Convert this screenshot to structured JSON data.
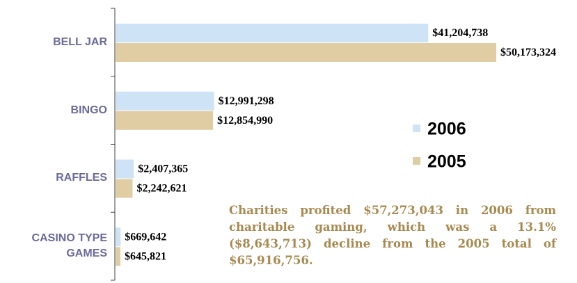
{
  "chart_data": {
    "type": "bar",
    "orientation": "horizontal",
    "categories": [
      "BELL JAR",
      "BINGO",
      "RAFFLES",
      "CASINO TYPE GAMES"
    ],
    "series": [
      {
        "name": "2006",
        "color": "#cfe3f7",
        "values": [
          41204738,
          12991298,
          2407365,
          669642
        ],
        "value_labels": [
          "$41,204,738",
          "$12,991,298",
          "$2,407,365",
          "$669,642"
        ]
      },
      {
        "name": "2005",
        "color": "#e0cda3",
        "values": [
          50173324,
          12854990,
          2242621,
          645821
        ],
        "value_labels": [
          "$50,173,324",
          "$12,854,990",
          "$2,242,621",
          "$645,821"
        ]
      }
    ],
    "annotation": "Charities profited $57,273,043 in 2006 from charitable gaming, which was a 13.1% ($8,643,713) decline from the 2005 total of $65,916,756."
  }
}
